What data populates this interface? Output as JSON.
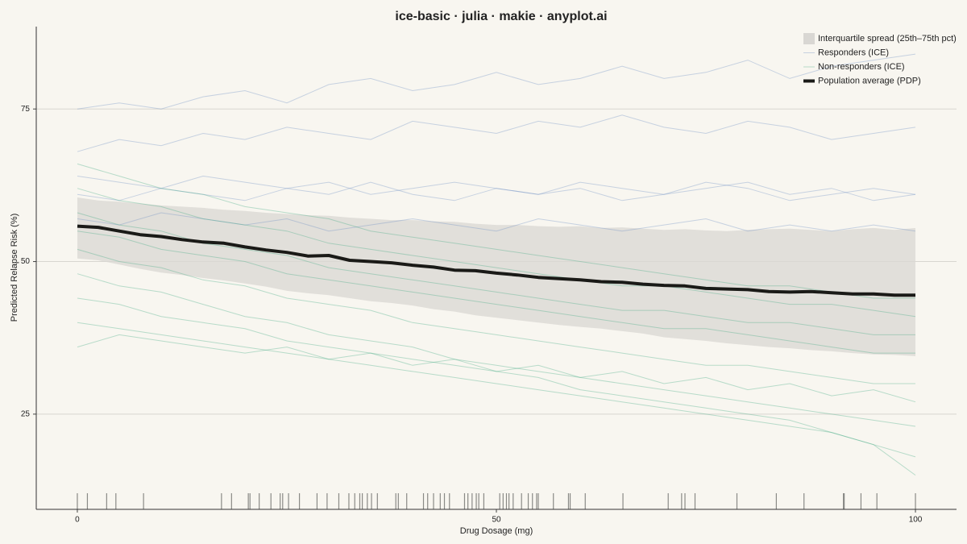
{
  "chart_data": {
    "type": "ice",
    "title": "ice-basic · julia · makie · anyplot.ai",
    "x_label": "Drug Dosage (mg)",
    "y_label": "Predicted Relapse Risk (%)",
    "xlim": [
      -4.9,
      104.9
    ],
    "ylim": [
      9.4,
      88.5
    ],
    "xticks": [
      0,
      50,
      100
    ],
    "yticks": [
      25,
      50,
      75
    ],
    "grid": true,
    "legend": "upper right",
    "band": {
      "name": "Interquartile spread (25th–75th pct)",
      "color": "#d9d7d3",
      "x": [
        0,
        2.5,
        5,
        7.5,
        10,
        12.5,
        15,
        17.5,
        20,
        22.5,
        25,
        27.5,
        30,
        32.5,
        35,
        37.5,
        40,
        42.5,
        45,
        47.5,
        50,
        52.5,
        55,
        57.5,
        60,
        62.5,
        65,
        67.5,
        70,
        72.5,
        75,
        77.5,
        80,
        82.5,
        85,
        87.5,
        90,
        92.5,
        95,
        97.5,
        100
      ],
      "lower": [
        50.5,
        50.2,
        49.5,
        48.8,
        48.2,
        47.8,
        47.3,
        46.9,
        46.4,
        45.9,
        45.2,
        44.8,
        44.5,
        44.0,
        43.5,
        43.2,
        42.8,
        42.2,
        41.8,
        41.2,
        40.8,
        40.4,
        40.0,
        39.6,
        39.3,
        39.0,
        38.6,
        38.2,
        37.6,
        37.3,
        37.0,
        36.6,
        36.3,
        36.0,
        35.8,
        35.5,
        35.3,
        35.0,
        34.8,
        34.7,
        34.5
      ],
      "upper": [
        60.5,
        60,
        59.8,
        59.5,
        59.2,
        59,
        58.8,
        58.5,
        58.3,
        58.0,
        57.8,
        57.6,
        57.5,
        57.2,
        57.0,
        56.8,
        56.8,
        56.6,
        56.5,
        56.2,
        56.0,
        56.0,
        55.8,
        55.7,
        55.8,
        55.5,
        55.6,
        55.4,
        55.2,
        55.3,
        55.1,
        55.0,
        55.2,
        55.3,
        55.4,
        55.2,
        55.0,
        55.3,
        55.5,
        55.2,
        55.5
      ]
    },
    "groups": [
      {
        "name": "Responders (ICE)",
        "color": "#6a8cc4",
        "x": [
          0,
          5,
          10,
          15,
          20,
          25,
          30,
          35,
          40,
          45,
          50,
          55,
          60,
          65,
          70,
          75,
          80,
          85,
          90,
          95,
          100
        ],
        "lines": [
          [
            75,
            76,
            75,
            77,
            78,
            76,
            79,
            80,
            78,
            79,
            81,
            79,
            80,
            82,
            80,
            81,
            83,
            80,
            82,
            83,
            84
          ],
          [
            68,
            70,
            69,
            71,
            70,
            72,
            71,
            70,
            73,
            72,
            71,
            73,
            72,
            74,
            72,
            71,
            73,
            72,
            70,
            71,
            72
          ],
          [
            61,
            60,
            62,
            61,
            60,
            62,
            61,
            63,
            61,
            60,
            62,
            61,
            62,
            60,
            61,
            63,
            62,
            60,
            61,
            62,
            61
          ],
          [
            57,
            56,
            58,
            57,
            56,
            57,
            55,
            56,
            57,
            56,
            55,
            57,
            56,
            55,
            56,
            57,
            55,
            56,
            55,
            56,
            55
          ],
          [
            64,
            63,
            62,
            64,
            63,
            62,
            63,
            61,
            62,
            63,
            62,
            61,
            63,
            62,
            61,
            62,
            63,
            61,
            62,
            60,
            61
          ]
        ]
      },
      {
        "name": "Non-responders (ICE)",
        "color": "#3ea880",
        "x": [
          0,
          5,
          10,
          15,
          20,
          25,
          30,
          35,
          40,
          45,
          50,
          55,
          60,
          65,
          70,
          75,
          80,
          85,
          90,
          95,
          100
        ],
        "lines": [
          [
            58,
            56,
            55,
            53,
            52,
            51,
            49,
            48,
            47,
            46,
            45,
            44,
            43,
            42,
            42,
            41,
            40,
            40,
            39,
            38,
            38
          ],
          [
            52,
            50,
            49,
            47,
            46,
            44,
            43,
            42,
            40,
            39,
            38,
            37,
            36,
            35,
            34,
            33,
            33,
            32,
            31,
            30,
            30
          ],
          [
            48,
            46,
            45,
            43,
            41,
            40,
            38,
            37,
            36,
            34,
            33,
            32,
            31,
            30,
            29,
            28,
            27,
            26,
            25,
            24,
            23
          ],
          [
            44,
            43,
            41,
            40,
            39,
            37,
            36,
            35,
            34,
            33,
            32,
            31,
            29,
            28,
            27,
            26,
            25,
            24,
            22,
            20,
            18
          ],
          [
            62,
            60,
            59,
            57,
            56,
            55,
            53,
            52,
            51,
            50,
            49,
            48,
            47,
            46,
            46,
            45,
            44,
            43,
            43,
            42,
            41
          ],
          [
            55,
            54,
            52,
            51,
            50,
            48,
            47,
            46,
            45,
            44,
            43,
            42,
            41,
            40,
            39,
            39,
            38,
            37,
            36,
            35,
            35
          ],
          [
            66,
            64,
            62,
            61,
            59,
            58,
            57,
            55,
            54,
            53,
            52,
            51,
            50,
            49,
            48,
            47,
            46,
            46,
            45,
            44,
            44
          ],
          [
            40,
            39,
            38,
            37,
            36,
            35,
            34,
            33,
            32,
            31,
            30,
            29,
            28,
            27,
            26,
            25,
            24,
            23,
            22,
            20,
            15
          ],
          [
            36,
            38,
            37,
            36,
            35,
            36,
            34,
            35,
            33,
            34,
            32,
            33,
            31,
            32,
            30,
            31,
            29,
            30,
            28,
            29,
            27
          ]
        ]
      }
    ],
    "pdp": {
      "name": "Population average (PDP)",
      "color": "#1a1a17",
      "x": [
        0,
        2.5,
        5,
        7.5,
        10,
        12.5,
        15,
        17.5,
        20,
        22.5,
        25,
        27.5,
        30,
        32.5,
        35,
        37.5,
        40,
        42.5,
        45,
        47.5,
        50,
        52.5,
        55,
        57.5,
        60,
        62.5,
        65,
        67.5,
        70,
        72.5,
        75,
        77.5,
        80,
        82.5,
        85,
        87.5,
        90,
        92.5,
        95,
        97.5,
        100
      ],
      "values": [
        55.8,
        55.6,
        55.0,
        54.4,
        54.1,
        53.6,
        53.2,
        53.0,
        52.4,
        51.9,
        51.5,
        50.9,
        51.0,
        50.2,
        50.0,
        49.8,
        49.4,
        49.1,
        48.6,
        48.5,
        48.1,
        47.8,
        47.4,
        47.2,
        47.0,
        46.7,
        46.6,
        46.3,
        46.1,
        46.0,
        45.6,
        45.5,
        45.4,
        45.1,
        45.0,
        45.1,
        44.9,
        44.7,
        44.7,
        44.5,
        44.5
      ]
    },
    "rug": {
      "color": "#8a8a86",
      "x": [
        0,
        1.2,
        3.5,
        4.6,
        7.9,
        17.2,
        18.4,
        20.4,
        20.6,
        21.7,
        23.1,
        24.2,
        24.5,
        25.2,
        26.5,
        28.6,
        29.8,
        31.2,
        32.4,
        33.1,
        33.7,
        34.0,
        34.6,
        35.1,
        35.8,
        38.0,
        38.3,
        39.3,
        41.3,
        41.8,
        42.5,
        43.3,
        43.8,
        44.4,
        46.2,
        46.6,
        47.1,
        47.6,
        47.9,
        48.5,
        50.4,
        50.8,
        51.2,
        51.5,
        52.0,
        53.0,
        53.8,
        54.3,
        54.8,
        55.0,
        56.8,
        58.6,
        58.8,
        60.6,
        65.1,
        70.5,
        72.1,
        72.5,
        73.7,
        78.7,
        83.4,
        86.7,
        91.4,
        91.5,
        93.5,
        95.4,
        100
      ]
    }
  }
}
